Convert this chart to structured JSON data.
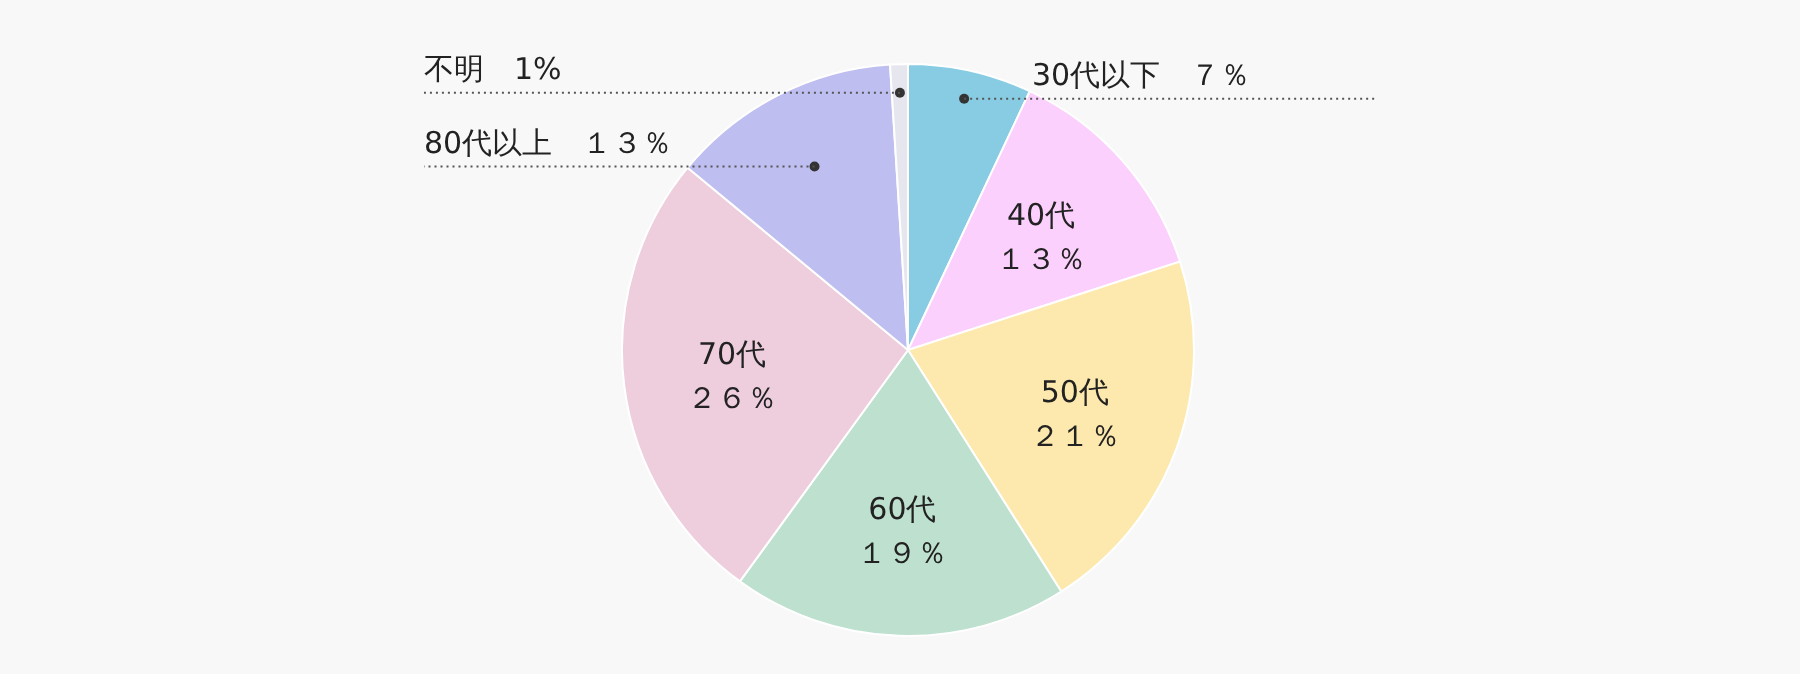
{
  "chart_data": {
    "type": "pie",
    "categories": [
      "30代以下",
      "40代",
      "50代",
      "60代",
      "70代",
      "80代以上",
      "不明"
    ],
    "values": [
      7,
      13,
      21,
      19,
      26,
      13,
      1
    ],
    "value_labels": [
      "７％",
      "１３％",
      "２１％",
      "１９％",
      "２６％",
      "１３％",
      "1%"
    ],
    "colors": [
      "#88cce3",
      "#fcd0fc",
      "#fde9ad",
      "#bde0cf",
      "#eecddd",
      "#bebef0",
      "#e6e6ee"
    ],
    "legend": false
  }
}
